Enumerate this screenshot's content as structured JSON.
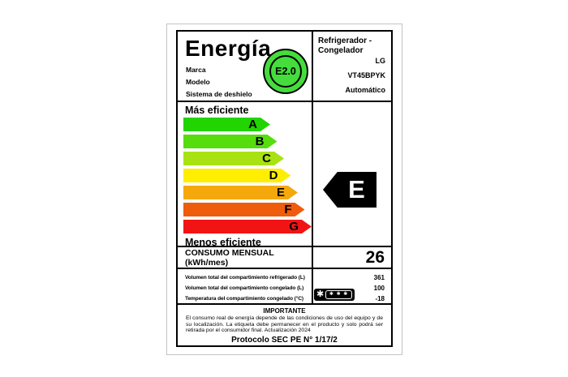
{
  "label": {
    "title": "Energía",
    "badge_text": "E2.0",
    "badge_color": "#44dd3c",
    "header_fields": [
      "Marca",
      "Modelo",
      "Sistema de deshielo"
    ],
    "product": {
      "type": "Refrigerador - Congelador",
      "brand": "LG",
      "model": "VT45BPYK",
      "defrost": "Automático"
    },
    "scale": {
      "top_label": "Más eficiente",
      "bottom_label": "Menos eficiente",
      "grades": [
        {
          "letter": "A",
          "color": "#22d400"
        },
        {
          "letter": "B",
          "color": "#55dd0d"
        },
        {
          "letter": "C",
          "color": "#a8e212"
        },
        {
          "letter": "D",
          "color": "#ffee00"
        },
        {
          "letter": "E",
          "color": "#f5a80c"
        },
        {
          "letter": "F",
          "color": "#ef5c0c"
        },
        {
          "letter": "G",
          "color": "#f21414"
        }
      ],
      "rating": "E",
      "rating_arrow_color": "#000000"
    },
    "consumption": {
      "label": "CONSUMO MENSUAL (kWh/mes)",
      "value": "26"
    },
    "details": {
      "rows": [
        {
          "label": "Volumen total del compartimiento refrigerado (L)",
          "value": "361"
        },
        {
          "label": "Volumen total del compartimiento congelado (L)",
          "value": "100"
        },
        {
          "label": "Temperatura del compartimiento congelado (°C)",
          "value": "-18"
        }
      ],
      "freezer_rating": {
        "outer_star": "✱",
        "inner_stars": "✱ ✱ ✱"
      }
    },
    "importante": {
      "heading": "IMPORTANTE",
      "body": "El consumo real de energía depende de las condiciones de uso del equipo y de su localización. La etiqueta debe permanecer en el producto y solo podrá ser retirada por el consumidor final. Actualización 2024",
      "protocol": "Protocolo SEC PE N° 1/17/2"
    }
  }
}
